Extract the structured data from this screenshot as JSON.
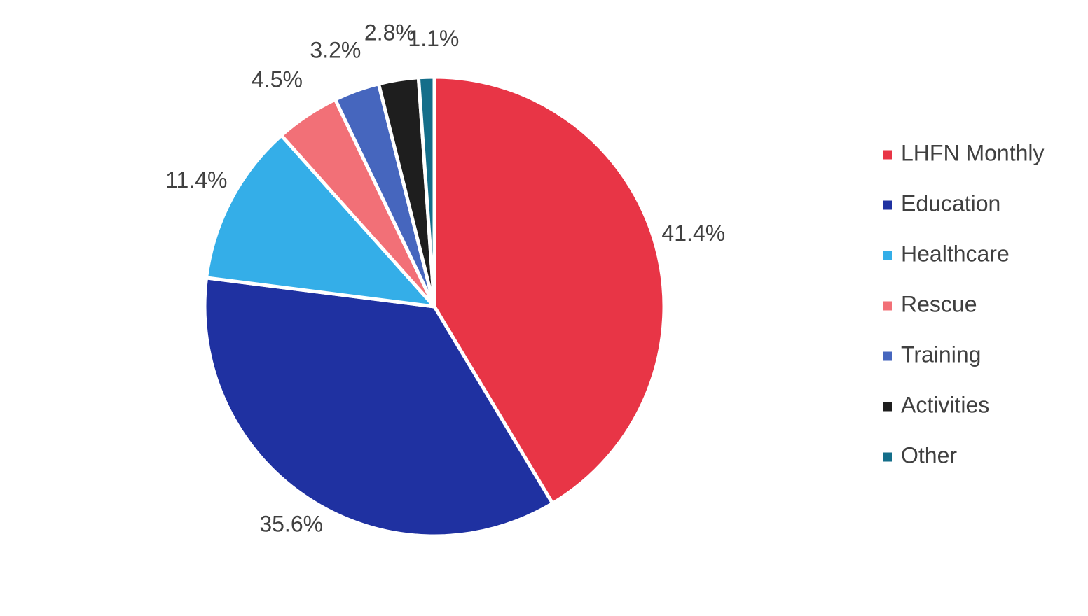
{
  "chart_data": {
    "type": "pie",
    "title": "",
    "legend_position": "right",
    "slices": [
      {
        "name": "LHFN Monthly",
        "value": 41.4,
        "label": "41.4%",
        "color": "#E83546"
      },
      {
        "name": "Education",
        "value": 35.6,
        "label": "35.6%",
        "color": "#1F31A1"
      },
      {
        "name": "Healthcare",
        "value": 11.4,
        "label": "11.4%",
        "color": "#34AEE8"
      },
      {
        "name": "Rescue",
        "value": 4.5,
        "label": "4.5%",
        "color": "#F27077"
      },
      {
        "name": "Training",
        "value": 3.2,
        "label": "3.2%",
        "color": "#4666BE"
      },
      {
        "name": "Activities",
        "value": 2.8,
        "label": "2.8%",
        "color": "#1E1E1E"
      },
      {
        "name": "Other",
        "value": 1.1,
        "label": "1.1%",
        "color": "#146E8A"
      }
    ]
  }
}
